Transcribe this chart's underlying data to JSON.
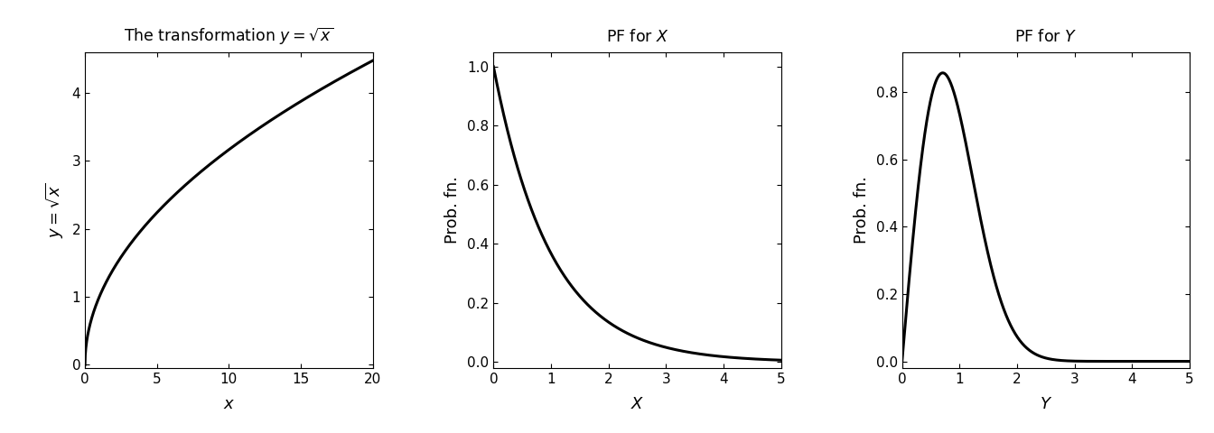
{
  "panel1": {
    "title": "The transformation $y = \\sqrt{x}$",
    "xlabel": "$x$",
    "ylabel": "$y = \\sqrt{x}$",
    "x_range": [
      0,
      20
    ],
    "y_range": [
      -0.05,
      4.6
    ],
    "xticks": [
      0,
      5,
      10,
      15,
      20
    ],
    "yticks": [
      0,
      1,
      2,
      3,
      4
    ]
  },
  "panel2": {
    "title": "PF for $X$",
    "xlabel": "$X$",
    "ylabel": "Prob. fn.",
    "x_range": [
      0,
      5
    ],
    "y_range": [
      -0.02,
      1.05
    ],
    "xticks": [
      0,
      1,
      2,
      3,
      4,
      5
    ],
    "yticks": [
      0.0,
      0.2,
      0.4,
      0.6,
      0.8,
      1.0
    ]
  },
  "panel3": {
    "title": "PF for $Y$",
    "xlabel": "$Y$",
    "ylabel": "Prob. fn.",
    "x_range": [
      0,
      5
    ],
    "y_range": [
      -0.02,
      0.92
    ],
    "xticks": [
      0,
      1,
      2,
      3,
      4,
      5
    ],
    "yticks": [
      0.0,
      0.2,
      0.4,
      0.6,
      0.8
    ]
  },
  "line_color": "#000000",
  "line_width": 2.2,
  "background_color": "#ffffff",
  "spine_color": "#000000",
  "title_fontsize": 12.5,
  "label_fontsize": 13,
  "tick_fontsize": 11
}
